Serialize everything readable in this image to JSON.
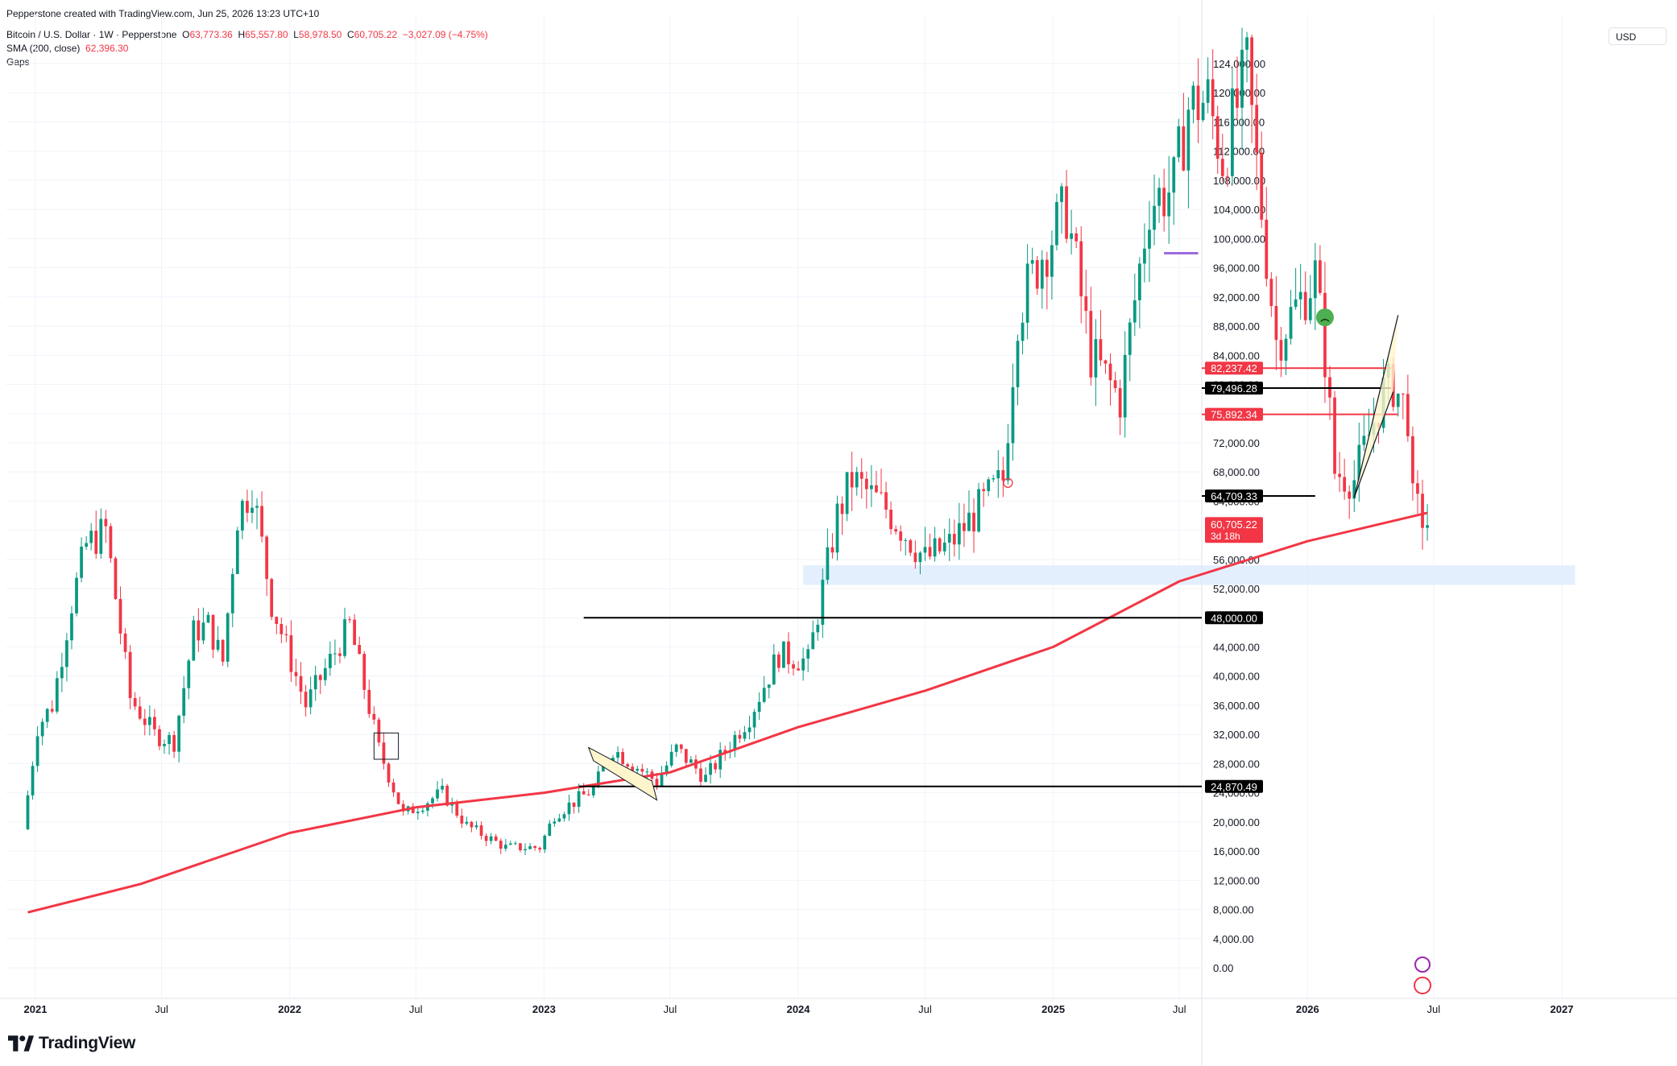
{
  "header": {
    "credit": "Pepperstone created with TradingView.com, Jun 25, 2026 13:23 UTC+10",
    "symbol": "Bitcoin / U.S. Dollar · 1W · Pepperstone",
    "o_label": "O",
    "o_value": "63,773.36",
    "h_label": "H",
    "h_value": "65,557.80",
    "l_label": "L",
    "l_value": "58,978.50",
    "c_label": "C",
    "c_value": "60,705.22",
    "change": "−3,027.09 (−4.75%)",
    "sma_label": "SMA (200, close)",
    "sma_value": "62,396.30",
    "gaps_label": "Gaps"
  },
  "currency": "USD",
  "brand": "TradingView",
  "colors": {
    "up": "#089981",
    "down": "#f23645",
    "sma": "#f23645",
    "grid": "#f0f3fa",
    "zone": "#dbeafe",
    "level": "#000000"
  },
  "chart_data": {
    "type": "candlestick",
    "title": "Bitcoin / U.S. Dollar · 1W · Pepperstone",
    "y_ticks": [
      "0.00",
      "4,000.00",
      "8,000.00",
      "12,000.00",
      "16,000.00",
      "20,000.00",
      "24,000.00",
      "28,000.00",
      "32,000.00",
      "36,000.00",
      "40,000.00",
      "44,000.00",
      "48,000.00",
      "52,000.00",
      "56,000.00",
      "60,000.00",
      "64,000.00",
      "68,000.00",
      "72,000.00",
      "76,000.00",
      "80,000.00",
      "84,000.00",
      "88,000.00",
      "92,000.00",
      "96,000.00",
      "100,000.00",
      "104,000.00",
      "108,000.00",
      "112,000.00",
      "116,000.00",
      "120,000.00",
      "124,000.00"
    ],
    "x_ticks": [
      {
        "label": "2021",
        "date": "2021-01-01"
      },
      {
        "label": "Jul",
        "date": "2021-07-01"
      },
      {
        "label": "2022",
        "date": "2022-01-01"
      },
      {
        "label": "Jul",
        "date": "2022-07-01"
      },
      {
        "label": "2023",
        "date": "2023-01-01"
      },
      {
        "label": "Jul",
        "date": "2023-07-01"
      },
      {
        "label": "2024",
        "date": "2024-01-01"
      },
      {
        "label": "Jul",
        "date": "2024-07-01"
      },
      {
        "label": "2025",
        "date": "2025-01-01"
      },
      {
        "label": "Jul",
        "date": "2025-07-01"
      },
      {
        "label": "2026",
        "date": "2026-01-01"
      },
      {
        "label": "Jul",
        "date": "2026-07-01"
      },
      {
        "label": "2027",
        "date": "2027-01-01"
      }
    ],
    "ylim": [
      0,
      126000
    ],
    "price_path": [
      [
        "2020-12-14",
        19000
      ],
      [
        "2021-01-04",
        33000
      ],
      [
        "2021-01-25",
        36000
      ],
      [
        "2021-02-22",
        50000
      ],
      [
        "2021-03-15",
        58000
      ],
      [
        "2021-04-12",
        60000
      ],
      [
        "2021-05-17",
        37000
      ],
      [
        "2021-06-21",
        32000
      ],
      [
        "2021-07-19",
        31000
      ],
      [
        "2021-08-16",
        46000
      ],
      [
        "2021-09-06",
        47000
      ],
      [
        "2021-09-27",
        42000
      ],
      [
        "2021-10-18",
        62000
      ],
      [
        "2021-11-08",
        66000
      ],
      [
        "2021-12-06",
        50000
      ],
      [
        "2022-01-24",
        36000
      ],
      [
        "2022-03-28",
        47000
      ],
      [
        "2022-05-09",
        30000
      ],
      [
        "2022-06-13",
        21000
      ],
      [
        "2022-08-08",
        24000
      ],
      [
        "2022-09-12",
        19500
      ],
      [
        "2022-11-07",
        16500
      ],
      [
        "2022-12-26",
        16500
      ],
      [
        "2023-01-16",
        21000
      ],
      [
        "2023-03-13",
        24500
      ],
      [
        "2023-04-10",
        30000
      ],
      [
        "2023-06-12",
        25500
      ],
      [
        "2023-07-10",
        30000
      ],
      [
        "2023-08-21",
        26000
      ],
      [
        "2023-10-23",
        34500
      ],
      [
        "2023-12-04",
        43000
      ],
      [
        "2024-01-15",
        42000
      ],
      [
        "2024-02-26",
        62000
      ],
      [
        "2024-03-18",
        67000
      ],
      [
        "2024-05-06",
        63000
      ],
      [
        "2024-07-01",
        56000
      ],
      [
        "2024-08-05",
        58000
      ],
      [
        "2024-10-21",
        67000
      ],
      [
        "2024-11-11",
        90000
      ],
      [
        "2024-12-16",
        98000
      ],
      [
        "2025-01-20",
        104000
      ],
      [
        "2025-02-24",
        84000
      ],
      [
        "2025-04-07",
        78000
      ],
      [
        "2025-05-19",
        105000
      ],
      [
        "2025-06-23",
        107000
      ],
      [
        "2025-07-14",
        118000
      ],
      [
        "2025-08-11",
        119000
      ],
      [
        "2025-09-01",
        111000
      ],
      [
        "2025-10-06",
        123000
      ],
      [
        "2025-10-20",
        110000
      ],
      [
        "2025-11-17",
        86000
      ],
      [
        "2026-01-12",
        95000
      ],
      [
        "2026-01-26",
        84000
      ],
      [
        "2026-02-09",
        68000
      ],
      [
        "2026-03-09",
        67000
      ],
      [
        "2026-04-20",
        79000
      ],
      [
        "2026-05-04",
        80000
      ],
      [
        "2026-05-25",
        76000
      ],
      [
        "2026-06-01",
        63700
      ],
      [
        "2026-06-22",
        60705
      ]
    ],
    "sma_path": [
      [
        "2020-12-21",
        7600
      ],
      [
        "2021-06-01",
        11500
      ],
      [
        "2022-01-01",
        18500
      ],
      [
        "2022-07-01",
        22000
      ],
      [
        "2023-01-01",
        24000
      ],
      [
        "2023-07-01",
        26800
      ],
      [
        "2024-01-01",
        33000
      ],
      [
        "2024-07-01",
        38000
      ],
      [
        "2025-01-01",
        44000
      ],
      [
        "2025-07-01",
        53000
      ],
      [
        "2026-01-01",
        58500
      ],
      [
        "2026-06-22",
        62396
      ]
    ],
    "levels": [
      {
        "label": "82,237.42",
        "value": 82237.42,
        "color": "#f23645",
        "from": "2026-05-01"
      },
      {
        "label": "79,496.28",
        "value": 79496.28,
        "color": "#000000",
        "from": "2026-05-01"
      },
      {
        "label": "75,892.34",
        "value": 75892.34,
        "color": "#f23645",
        "from": "2026-05-11"
      },
      {
        "label": "64,709.33",
        "value": 64709.33,
        "color": "#000000",
        "from": "2026-01-12"
      },
      {
        "label": "48,000.00",
        "value": 48000,
        "color": "#000000",
        "from": "2023-02-27"
      },
      {
        "label": "24,870.49",
        "value": 24870.49,
        "color": "#000000",
        "from": "2023-02-20"
      }
    ],
    "zone": {
      "from": "2024-01-08",
      "to": "2027-01-20",
      "low": 52500,
      "high": 55200
    },
    "last_price": {
      "label": "60,705.22",
      "countdown": "3d 18h",
      "value": 60705.22
    }
  }
}
